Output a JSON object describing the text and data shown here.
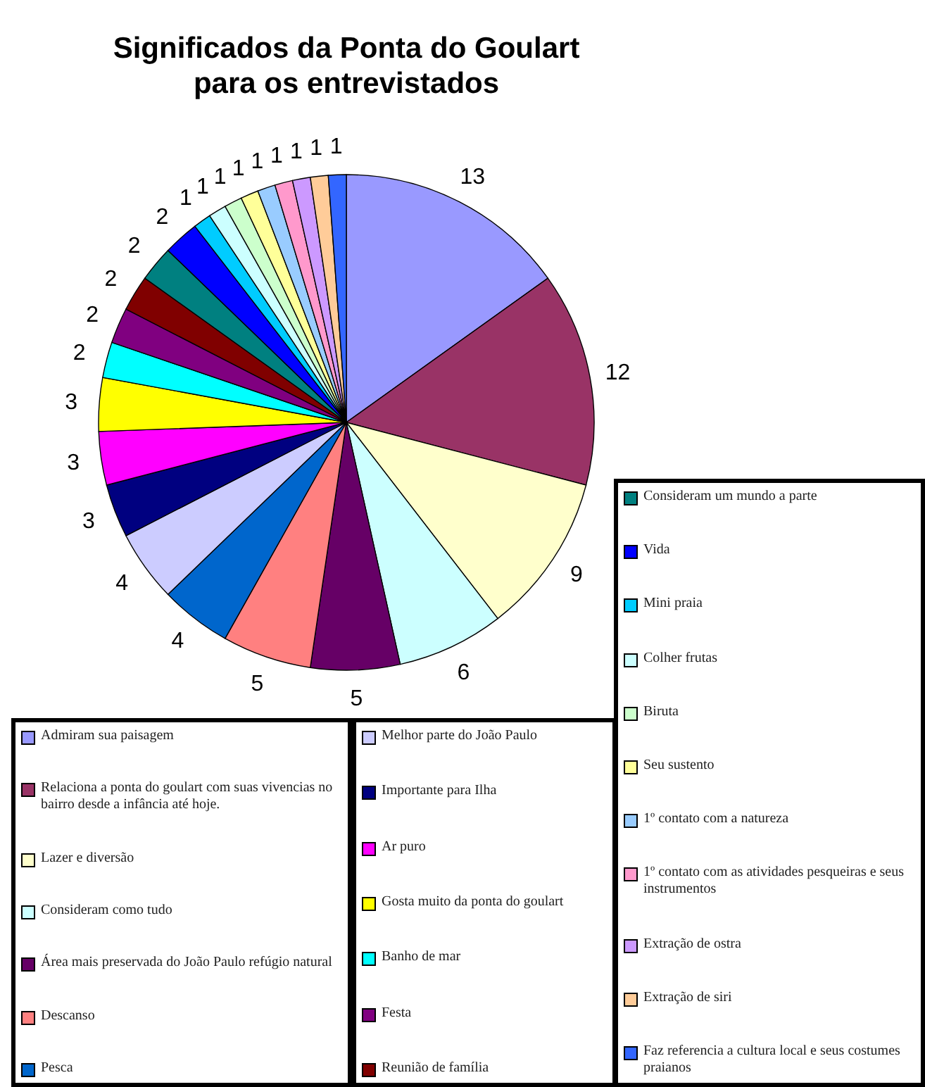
{
  "chart_data": {
    "type": "pie",
    "title": "Significados da Ponta do Goulart para os entrevistados",
    "categories": [
      "Admiram sua paisagem",
      "Relaciona a ponta do goulart com suas vivencias no bairro desde a infância até hoje.",
      "Lazer e diversão",
      "Consideram como tudo",
      "Área mais preservada do João Paulo refúgio natural",
      "Descanso",
      "Pesca",
      "Melhor parte do João Paulo",
      "Importante para Ilha",
      "Ar puro",
      "Gosta muito da ponta do goulart",
      "Banho de mar",
      "Festa",
      "Reunião de família",
      "Consideram um mundo a parte",
      "Vida",
      "Mini praia",
      "Colher frutas",
      "Biruta",
      "Seu sustento",
      "1º contato com a natureza",
      "1º contato com as atividades pesqueiras e seus instrumentos",
      "Extração de ostra",
      "Extração de siri",
      "Faz referencia a cultura local e seus costumes praianos"
    ],
    "values": [
      13,
      12,
      9,
      6,
      5,
      5,
      4,
      4,
      3,
      3,
      3,
      2,
      2,
      2,
      2,
      2,
      1,
      1,
      1,
      1,
      1,
      1,
      1,
      1,
      1
    ],
    "colors": [
      "#9999ff",
      "#993366",
      "#ffffcc",
      "#ccffff",
      "#660066",
      "#ff8080",
      "#0066cc",
      "#ccccff",
      "#000080",
      "#ff00ff",
      "#ffff00",
      "#00ffff",
      "#800080",
      "#800000",
      "#008080",
      "#0000ff",
      "#00ccff",
      "#ccffff",
      "#ccffcc",
      "#ffff99",
      "#99ccff",
      "#ff99cc",
      "#cc99ff",
      "#ffcc99",
      "#3366ff"
    ],
    "data_labels": true,
    "legend": "bottom"
  }
}
